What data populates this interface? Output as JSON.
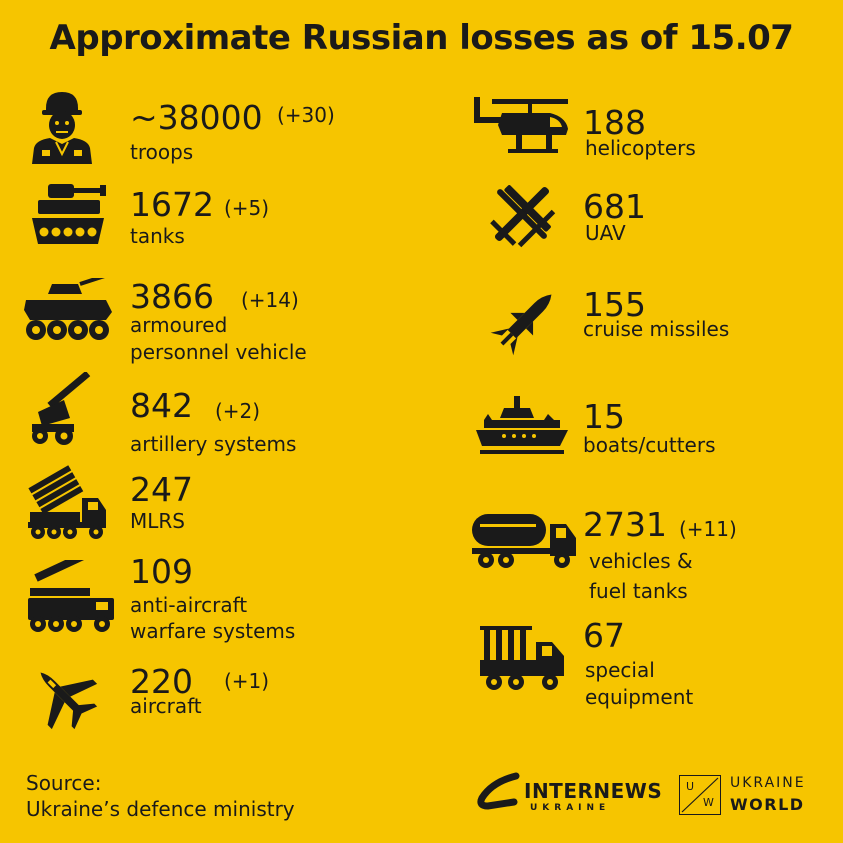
{
  "title": "Approximate Russian losses as of 15.07",
  "left": [
    {
      "value": "~38000",
      "delta": "(+30)",
      "label": "troops",
      "icon": "soldier-icon"
    },
    {
      "value": "1672",
      "delta": "(+5)",
      "label": "tanks",
      "icon": "tank-icon"
    },
    {
      "value": "3866",
      "delta": "(+14)",
      "label_lines": [
        "armoured",
        "personnel vehicle"
      ],
      "icon": "apc-icon"
    },
    {
      "value": "842",
      "delta": "(+2)",
      "label": "artillery systems",
      "icon": "artillery-icon"
    },
    {
      "value": "247",
      "delta": "",
      "label": "MLRS",
      "icon": "mlrs-icon"
    },
    {
      "value": "109",
      "delta": "",
      "label_lines": [
        "anti-aircraft",
        "warfare systems"
      ],
      "icon": "anti-aircraft-icon"
    },
    {
      "value": "220",
      "delta": "(+1)",
      "label": "aircraft",
      "icon": "aircraft-icon"
    }
  ],
  "right": [
    {
      "value": "188",
      "delta": "",
      "label": "helicopters",
      "icon": "helicopter-icon"
    },
    {
      "value": "681",
      "delta": "",
      "label": "UAV",
      "icon": "uav-icon"
    },
    {
      "value": "155",
      "delta": "",
      "label": "cruise missiles",
      "icon": "missile-icon"
    },
    {
      "value": "15",
      "delta": "",
      "label": "boats/cutters",
      "icon": "boat-icon"
    },
    {
      "value": "2731",
      "delta": "(+11)",
      "label_lines": [
        "vehicles &",
        "fuel tanks"
      ],
      "icon": "fuel-truck-icon"
    },
    {
      "value": "67",
      "delta": "",
      "label_lines": [
        "special",
        "equipment"
      ],
      "icon": "special-equipment-icon"
    }
  ],
  "source": {
    "heading": "Source:",
    "text": "Ukraine’s defence ministry"
  },
  "logos": {
    "internews_main": "INTERNEWS",
    "internews_sub": "UKRAINE",
    "uw_letter_u": "U",
    "uw_letter_w": "W",
    "uw_top": "UKRAINE",
    "uw_bottom": "WORLD"
  },
  "colors": {
    "background": "#F6C500",
    "foreground": "#1a1a1a"
  }
}
